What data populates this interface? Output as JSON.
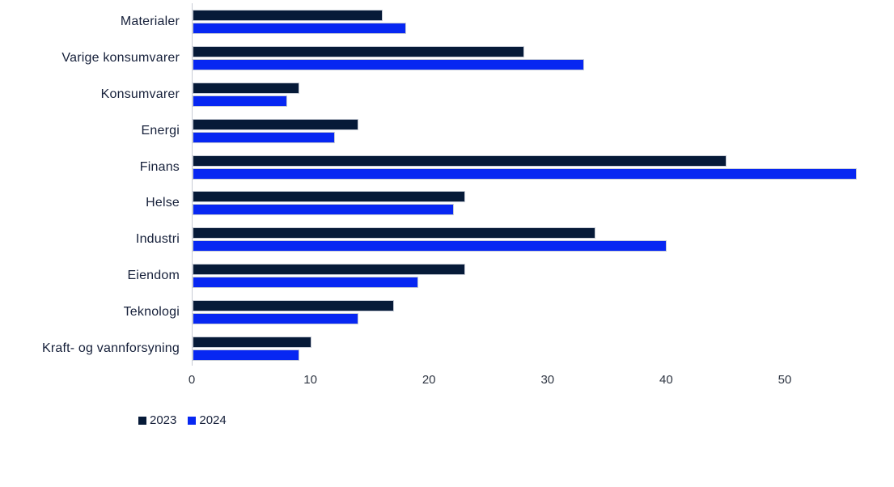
{
  "chart_data": {
    "type": "bar",
    "orientation": "horizontal",
    "title": "",
    "categories": [
      "Materialer",
      "Varige konsumvarer",
      "Konsumvarer",
      "Energi",
      "Finans",
      "Helse",
      "Industri",
      "Eiendom",
      "Teknologi",
      "Kraft- og vannforsyning"
    ],
    "series": [
      {
        "name": "2023",
        "color": "#061a38",
        "values": [
          16,
          28,
          9,
          14,
          45,
          23,
          34,
          23,
          17,
          10
        ]
      },
      {
        "name": "2024",
        "color": "#0727f2",
        "values": [
          18,
          33,
          8,
          12,
          56,
          22,
          40,
          19,
          14,
          9
        ]
      }
    ],
    "x_axis": {
      "ticks": [
        "0",
        "10",
        "20",
        "30",
        "40",
        "50"
      ],
      "min": 0,
      "max": 56
    },
    "grid": false,
    "legend_position": "bottom-left",
    "legend_items": [
      "2023",
      "2024"
    ]
  },
  "style_colors": {
    "background": "#ffffff",
    "axis_line": "#c9ccd4",
    "tick_text": "#2e3542",
    "category_text": "#16203a",
    "bar_stroke": "#c7ccd6"
  }
}
